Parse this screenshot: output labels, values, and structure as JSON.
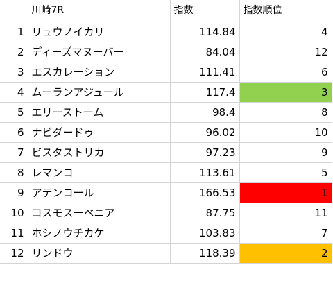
{
  "sheet": {
    "header": {
      "race": "川崎7R",
      "index": "指数",
      "rank": "指数順位"
    },
    "rows": [
      {
        "num": "1",
        "name": "リュウノイカリ",
        "index": "114.84",
        "rank": "4",
        "highlight": ""
      },
      {
        "num": "2",
        "name": "ディーズマヌーバー",
        "index": "84.04",
        "rank": "12",
        "highlight": ""
      },
      {
        "num": "3",
        "name": "エスカレーション",
        "index": "111.41",
        "rank": "6",
        "highlight": ""
      },
      {
        "num": "4",
        "name": "ムーランアジュール",
        "index": "117.4",
        "rank": "3",
        "highlight": "#92d050"
      },
      {
        "num": "5",
        "name": "エリーストーム",
        "index": "98.4",
        "rank": "8",
        "highlight": ""
      },
      {
        "num": "6",
        "name": "ナビダードゥ",
        "index": "96.02",
        "rank": "10",
        "highlight": ""
      },
      {
        "num": "7",
        "name": "ビスタストリカ",
        "index": "97.23",
        "rank": "9",
        "highlight": ""
      },
      {
        "num": "8",
        "name": "レマンコ",
        "index": "113.61",
        "rank": "5",
        "highlight": ""
      },
      {
        "num": "9",
        "name": "アテンコール",
        "index": "166.53",
        "rank": "1",
        "highlight": "#ff0000"
      },
      {
        "num": "10",
        "name": "コスモスーベニア",
        "index": "87.75",
        "rank": "11",
        "highlight": ""
      },
      {
        "num": "11",
        "name": "ホシノウチカケ",
        "index": "103.83",
        "rank": "7",
        "highlight": ""
      },
      {
        "num": "12",
        "name": "リンドウ",
        "index": "118.39",
        "rank": "2",
        "highlight": "#ffc000"
      }
    ]
  }
}
